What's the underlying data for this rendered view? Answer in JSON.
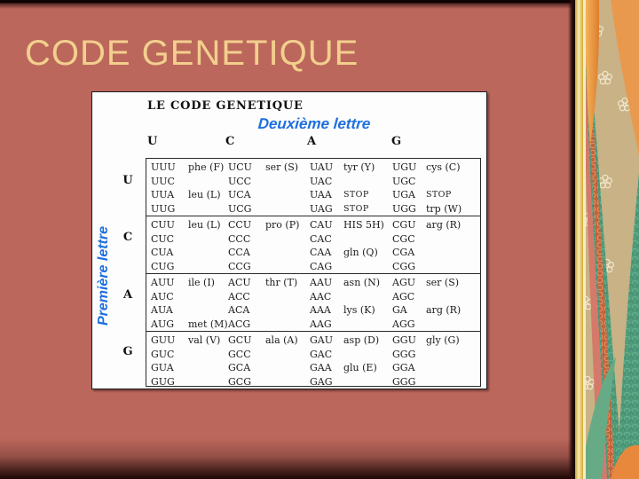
{
  "slide": {
    "title": "CODE GENETIQUE",
    "colors": {
      "background": "#bc675c",
      "title_text": "#f2cf8d",
      "accent_blue": "#1e6fe0",
      "border_tan": "#c8b286",
      "border_gold": "#e3bc3f",
      "border_orange": "#e8954a",
      "border_salmon": "#d5796b",
      "border_teal": "#4e9c7c"
    }
  },
  "table_panel": {
    "heading": "LE CODE GENETIQUE",
    "second_letter_label": "Deuxième lettre",
    "first_letter_label": "Première lettre",
    "column_headers": [
      "U",
      "C",
      "A",
      "G"
    ],
    "row_headers": [
      "U",
      "C",
      "A",
      "G"
    ],
    "row_groups": [
      {
        "first_letter": "U",
        "lines": [
          [
            "UUU",
            "phe (F)",
            "UCU",
            "ser (S)",
            "UAU",
            "tyr (Y)",
            "UGU",
            "cys (C)"
          ],
          [
            "UUC",
            "",
            "UCC",
            "",
            "UAC",
            "",
            "UGC",
            ""
          ],
          [
            "UUA",
            "leu (L)",
            "UCA",
            "",
            "UAA",
            "STOP",
            "UGA",
            "STOP"
          ],
          [
            "UUG",
            "",
            "UCG",
            "",
            "UAG",
            "STOP",
            "UGG",
            "trp (W)"
          ]
        ]
      },
      {
        "first_letter": "C",
        "lines": [
          [
            "CUU",
            "leu (L)",
            "CCU",
            "pro (P)",
            "CAU",
            "HIS 5H)",
            "CGU",
            "arg (R)"
          ],
          [
            "CUC",
            "",
            "CCC",
            "",
            "CAC",
            "",
            "CGC",
            ""
          ],
          [
            "CUA",
            "",
            "CCA",
            "",
            "CAA",
            "gln (Q)",
            "CGA",
            ""
          ],
          [
            "CUG",
            "",
            "CCG",
            "",
            "CAG",
            "",
            "CGG",
            ""
          ]
        ]
      },
      {
        "first_letter": "A",
        "lines": [
          [
            "AUU",
            "ile (I)",
            "ACU",
            "thr (T)",
            "AAU",
            "asn (N)",
            "AGU",
            "ser (S)"
          ],
          [
            "AUC",
            "",
            "ACC",
            "",
            "AAC",
            "",
            "AGC",
            ""
          ],
          [
            "AUA",
            "",
            "ACA",
            "",
            "AAA",
            "lys (K)",
            "GA",
            "arg (R)"
          ],
          [
            "AUG",
            "met (M)",
            "ACG",
            "",
            "AAG",
            "",
            "AGG",
            ""
          ]
        ]
      },
      {
        "first_letter": "G",
        "lines": [
          [
            "GUU",
            "val (V)",
            "GCU",
            "ala (A)",
            "GAU",
            "asp (D)",
            "GGU",
            "gly (G)"
          ],
          [
            "GUC",
            "",
            "GCC",
            "",
            "GAC",
            "",
            "GGG",
            ""
          ],
          [
            "GUA",
            "",
            "GCA",
            "",
            "GAA",
            "glu (E)",
            "GGA",
            ""
          ],
          [
            "GUG",
            "",
            "GCG",
            "",
            "GAG",
            "",
            "GGG",
            ""
          ]
        ]
      }
    ]
  }
}
